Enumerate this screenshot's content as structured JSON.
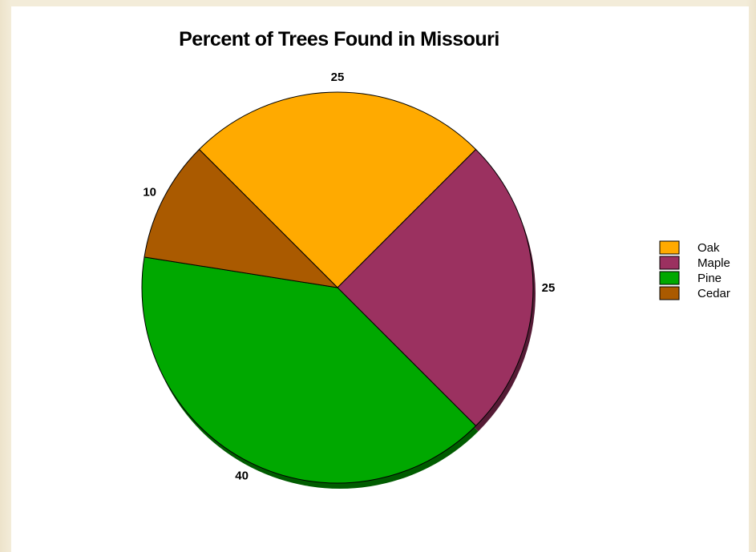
{
  "chart_data": {
    "type": "pie",
    "title": "Percent of Trees Found in Missouri",
    "categories": [
      "Oak",
      "Maple",
      "Pine",
      "Cedar"
    ],
    "values": [
      25,
      25,
      40,
      10
    ],
    "data_labels": [
      "25",
      "25",
      "40",
      "10"
    ],
    "colors": [
      "#ffaa00",
      "#9b3160",
      "#00a800",
      "#aa5a00"
    ],
    "legend": {
      "position": "right",
      "entries": [
        "Oak",
        "Maple",
        "Pine",
        "Cedar"
      ]
    }
  }
}
